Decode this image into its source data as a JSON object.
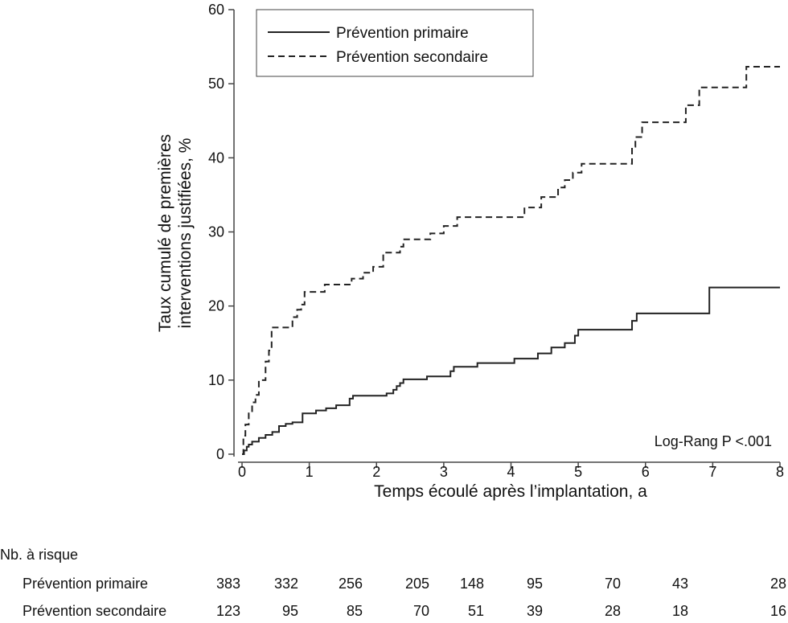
{
  "chart_data": {
    "type": "line",
    "step": true,
    "xlabel": "Temps écoulé après l’implantation, a",
    "ylabel_lines": [
      "Taux cumulé de premières",
      "interventions justifiées, %"
    ],
    "xlim": [
      0,
      8
    ],
    "ylim": [
      0,
      60
    ],
    "xticks": [
      "0",
      "1",
      "2",
      "3",
      "4",
      "5",
      "6",
      "7",
      "8"
    ],
    "yticks": [
      "0",
      "10",
      "20",
      "30",
      "40",
      "50",
      "60"
    ],
    "grid": false,
    "legend_position": "top-left",
    "annotation": "Log-Rang  P <.001",
    "series": [
      {
        "name": "Prévention primaire",
        "style": "solid",
        "color": "#222222",
        "points": [
          [
            0,
            0
          ],
          [
            0.03,
            0.5
          ],
          [
            0.07,
            1
          ],
          [
            0.1,
            1.3
          ],
          [
            0.15,
            1.7
          ],
          [
            0.25,
            2.2
          ],
          [
            0.35,
            2.6
          ],
          [
            0.45,
            3
          ],
          [
            0.55,
            3.8
          ],
          [
            0.65,
            4.1
          ],
          [
            0.75,
            4.3
          ],
          [
            0.9,
            5.5
          ],
          [
            1.1,
            5.9
          ],
          [
            1.25,
            6.2
          ],
          [
            1.4,
            6.6
          ],
          [
            1.6,
            7.5
          ],
          [
            1.65,
            7.9
          ],
          [
            2.15,
            8.2
          ],
          [
            2.25,
            8.7
          ],
          [
            2.3,
            9.2
          ],
          [
            2.35,
            9.6
          ],
          [
            2.4,
            10.1
          ],
          [
            2.75,
            10.5
          ],
          [
            3.1,
            11.2
          ],
          [
            3.15,
            11.8
          ],
          [
            3.5,
            12.3
          ],
          [
            4.05,
            12.9
          ],
          [
            4.4,
            13.6
          ],
          [
            4.6,
            14.4
          ],
          [
            4.8,
            15
          ],
          [
            4.95,
            16
          ],
          [
            5.0,
            16.8
          ],
          [
            5.8,
            18
          ],
          [
            5.87,
            19
          ],
          [
            6.95,
            22.5
          ],
          [
            8,
            22.5
          ]
        ]
      },
      {
        "name": "Prévention secondaire",
        "style": "dashed",
        "color": "#222222",
        "points": [
          [
            0,
            0
          ],
          [
            0.02,
            2.5
          ],
          [
            0.05,
            4
          ],
          [
            0.1,
            5.5
          ],
          [
            0.15,
            7
          ],
          [
            0.2,
            8
          ],
          [
            0.25,
            10
          ],
          [
            0.35,
            12.5
          ],
          [
            0.4,
            14
          ],
          [
            0.44,
            17.1
          ],
          [
            0.75,
            18.5
          ],
          [
            0.82,
            19.5
          ],
          [
            0.88,
            20.2
          ],
          [
            0.93,
            21.9
          ],
          [
            1.23,
            22.9
          ],
          [
            1.63,
            23.7
          ],
          [
            1.8,
            24.5
          ],
          [
            1.95,
            25.3
          ],
          [
            2.1,
            27.2
          ],
          [
            2.35,
            28
          ],
          [
            2.4,
            29
          ],
          [
            2.8,
            29.8
          ],
          [
            3.0,
            30.8
          ],
          [
            3.2,
            32
          ],
          [
            4.2,
            33.3
          ],
          [
            4.45,
            34.7
          ],
          [
            4.7,
            36
          ],
          [
            4.8,
            37
          ],
          [
            4.92,
            38
          ],
          [
            5.05,
            39.2
          ],
          [
            5.8,
            41.5
          ],
          [
            5.85,
            42.8
          ],
          [
            5.95,
            44.8
          ],
          [
            6.6,
            47.1
          ],
          [
            6.8,
            49.5
          ],
          [
            7.5,
            52.3
          ],
          [
            8,
            52.3
          ]
        ]
      }
    ]
  },
  "risk_table": {
    "title": "Nb. à risque",
    "rows": [
      {
        "label": "Prévention primaire",
        "values": [
          "383",
          "332",
          "256",
          "205",
          "148",
          "95",
          "70",
          "43",
          "28"
        ]
      },
      {
        "label": "Prévention secondaire",
        "values": [
          "123",
          "95",
          "85",
          "70",
          "51",
          "39",
          "28",
          "18",
          "16"
        ]
      }
    ]
  }
}
